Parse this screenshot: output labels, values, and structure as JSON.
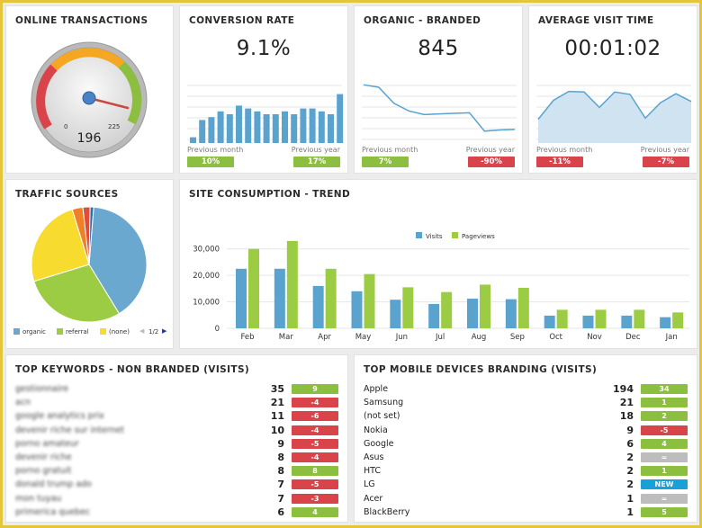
{
  "online_transactions": {
    "title": "ONLINE TRANSACTIONS",
    "gauge": {
      "min": "0",
      "max": "225",
      "value": "196"
    }
  },
  "conversion_rate": {
    "title": "CONVERSION RATE",
    "value": "9.1%",
    "bars": [
      2,
      8,
      9,
      11,
      10,
      13,
      12,
      11,
      10,
      10,
      11,
      10,
      12,
      12,
      11,
      10,
      17
    ],
    "prev_month_label": "Previous month",
    "prev_year_label": "Previous year",
    "prev_month_badge": "10%",
    "prev_year_badge": "17%",
    "prev_month_color": "green",
    "prev_year_color": "green"
  },
  "organic_branded": {
    "title": "ORGANIC - BRANDED",
    "value": "845",
    "line": [
      98,
      94,
      67,
      54,
      48,
      49,
      50,
      51,
      20,
      22,
      23
    ],
    "prev_month_label": "Previous month",
    "prev_year_label": "Previous year",
    "prev_month_badge": "7%",
    "prev_year_badge": "-90%"
  },
  "average_visit_time": {
    "title": "AVERAGE VISIT TIME",
    "value": "00:01:02",
    "area": [
      40,
      72,
      87,
      86,
      60,
      86,
      82,
      42,
      68,
      83,
      70
    ],
    "prev_month_label": "Previous month",
    "prev_year_label": "Previous year",
    "prev_month_badge": "-11%",
    "prev_year_badge": "-7%"
  },
  "traffic_sources": {
    "title": "TRAFFIC SOURCES",
    "legend": [
      "organic",
      "referral",
      "(none)"
    ],
    "pager": "1/2",
    "colors": [
      "#6aa8cf",
      "#9bcc43",
      "#f7dc2f",
      "#f07f2a",
      "#e04c3a",
      "#2f6fa8"
    ],
    "slices": [
      0.4,
      0.29,
      0.25,
      0.03,
      0.02,
      0.01
    ]
  },
  "site_consumption": {
    "title": "SITE CONSUMPTION - TREND",
    "legend": [
      "Visits",
      "Pageviews"
    ],
    "colors": [
      "#5aa3cf",
      "#9bcc43"
    ],
    "chart_data": {
      "type": "bar",
      "categories": [
        "Feb",
        "Mar",
        "Apr",
        "May",
        "Jun",
        "Jul",
        "Aug",
        "Sep",
        "Oct",
        "Nov",
        "Dec",
        "Jan"
      ],
      "series": [
        {
          "name": "Visits",
          "values": [
            22500,
            22500,
            16000,
            14000,
            10800,
            9200,
            11200,
            11000,
            4800,
            4800,
            4800,
            4200
          ]
        },
        {
          "name": "Pageviews",
          "values": [
            30000,
            33000,
            22500,
            20500,
            15500,
            13700,
            16500,
            15300,
            7000,
            7000,
            7000,
            6000
          ]
        }
      ],
      "ylim": [
        0,
        35000
      ],
      "yticks": [
        "0",
        "10,000",
        "20,000",
        "30,000"
      ]
    }
  },
  "top_keywords": {
    "title": "TOP KEYWORDS - NON BRANDED (VISITS)",
    "rows": [
      {
        "label": "gestionnaire",
        "num": "35",
        "badge": "9",
        "color": "green"
      },
      {
        "label": "acn",
        "num": "21",
        "badge": "-4",
        "color": "red"
      },
      {
        "label": "google analytics prix",
        "num": "11",
        "badge": "-6",
        "color": "red"
      },
      {
        "label": "devenir riche sur internet",
        "num": "10",
        "badge": "-4",
        "color": "red"
      },
      {
        "label": "porno amateur",
        "num": "9",
        "badge": "-5",
        "color": "red"
      },
      {
        "label": "devenir riche",
        "num": "8",
        "badge": "-4",
        "color": "red"
      },
      {
        "label": "porno gratuit",
        "num": "8",
        "badge": "8",
        "color": "green"
      },
      {
        "label": "donald trump ado",
        "num": "7",
        "badge": "-5",
        "color": "red"
      },
      {
        "label": "mon tuyau",
        "num": "7",
        "badge": "-3",
        "color": "red"
      },
      {
        "label": "primerica quebec",
        "num": "6",
        "badge": "4",
        "color": "green"
      }
    ]
  },
  "top_mobile": {
    "title": "TOP MOBILE DEVICES BRANDING (VISITS)",
    "rows": [
      {
        "label": "Apple",
        "num": "194",
        "badge": "34",
        "color": "green"
      },
      {
        "label": "Samsung",
        "num": "21",
        "badge": "1",
        "color": "green"
      },
      {
        "label": "(not set)",
        "num": "18",
        "badge": "2",
        "color": "green"
      },
      {
        "label": "Nokia",
        "num": "9",
        "badge": "-5",
        "color": "red"
      },
      {
        "label": "Google",
        "num": "6",
        "badge": "4",
        "color": "green"
      },
      {
        "label": "Asus",
        "num": "2",
        "badge": "=",
        "color": "grey"
      },
      {
        "label": "HTC",
        "num": "2",
        "badge": "1",
        "color": "green"
      },
      {
        "label": "LG",
        "num": "2",
        "badge": "NEW",
        "color": "blue"
      },
      {
        "label": "Acer",
        "num": "1",
        "badge": "=",
        "color": "grey"
      },
      {
        "label": "BlackBerry",
        "num": "1",
        "badge": "5",
        "color": "green"
      }
    ]
  }
}
